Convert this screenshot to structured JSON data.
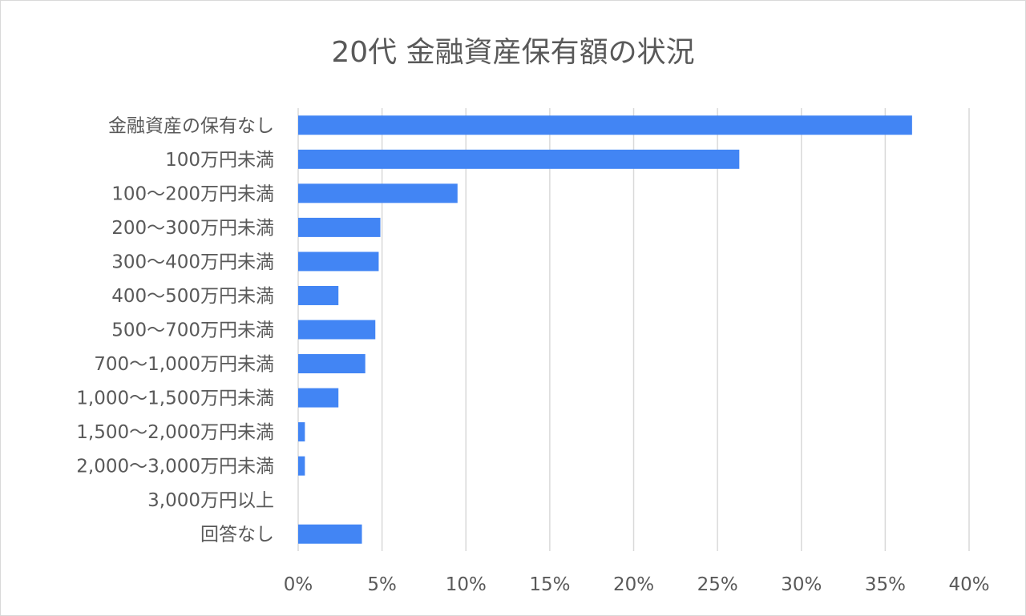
{
  "chart_data": {
    "type": "bar",
    "orientation": "horizontal",
    "title": "20代 金融資産保有額の状況",
    "xlabel": "",
    "ylabel": "",
    "categories": [
      "金融資産の保有なし",
      "100万円未満",
      "100～200万円未満",
      "200～300万円未満",
      "300～400万円未満",
      "400～500万円未満",
      "500～700万円未満",
      "700～1,000万円未満",
      "1,000～1,500万円未満",
      "1,500～2,000万円未満",
      "2,000～3,000万円未満",
      "3,000万円以上",
      "回答なし"
    ],
    "values": [
      36.6,
      26.3,
      9.5,
      4.9,
      4.8,
      2.4,
      4.6,
      4.0,
      2.4,
      0.4,
      0.4,
      0.0,
      3.8
    ],
    "xlim": [
      0,
      40
    ],
    "xticks": [
      "0%",
      "5%",
      "10%",
      "15%",
      "20%",
      "25%",
      "30%",
      "35%",
      "40%"
    ],
    "grid": true,
    "legend": "none",
    "bar_color": "#4285F4",
    "grid_color": "#d9d9d9"
  }
}
